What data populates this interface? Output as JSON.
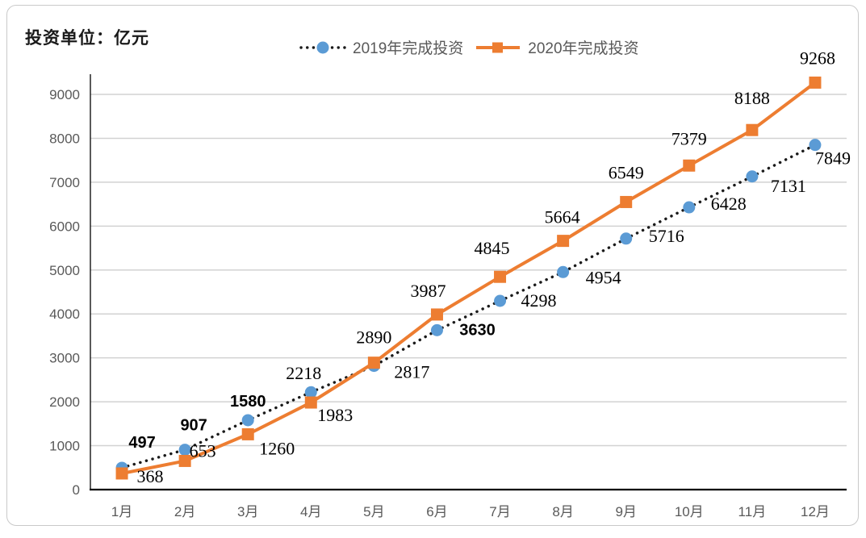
{
  "title": "投资单位：亿元",
  "legend": {
    "position": "top-center",
    "items": [
      {
        "label": "2019年完成投资",
        "marker": "dotted-line-circle",
        "text_color": "#595959"
      },
      {
        "label": "2020年完成投资",
        "marker": "solid-line-square",
        "text_color": "#595959"
      }
    ]
  },
  "chart_data": {
    "type": "line",
    "title": "投资单位：亿元",
    "unit": "亿元",
    "categories": [
      "1月",
      "2月",
      "3月",
      "4月",
      "5月",
      "6月",
      "7月",
      "8月",
      "9月",
      "10月",
      "11月",
      "12月"
    ],
    "series": [
      {
        "name": "2019年完成投资",
        "marker": "circle",
        "marker_color": "#5B9BD5",
        "line_color": "#1a1a1a",
        "line_style": "dotted",
        "values": [
          497,
          907,
          1580,
          2218,
          2817,
          3630,
          4298,
          4954,
          5716,
          6428,
          7131,
          7849
        ],
        "label_offsets": [
          [
            25,
            -32
          ],
          [
            11,
            -31
          ],
          [
            0,
            -24
          ],
          [
            -9,
            -23
          ],
          [
            47,
            8
          ],
          [
            50,
            -1
          ],
          [
            48,
            0
          ],
          [
            50,
            7
          ],
          [
            50,
            -3
          ],
          [
            49,
            -4
          ],
          [
            45,
            12
          ],
          [
            22,
            17
          ]
        ],
        "label_fonts": [
          "sans",
          "sans",
          "sans",
          "serif",
          "serif",
          "sans",
          "serif",
          "serif",
          "serif",
          "serif",
          "serif",
          "serif"
        ]
      },
      {
        "name": "2020年完成投资",
        "marker": "square",
        "marker_color": "#ED7D31",
        "line_color": "#ED7D31",
        "line_style": "solid",
        "values": [
          368,
          653,
          1260,
          1983,
          2890,
          3987,
          4845,
          5664,
          6549,
          7379,
          8188,
          9268
        ],
        "label_offsets": [
          [
            35,
            4
          ],
          [
            22,
            -12
          ],
          [
            36,
            18
          ],
          [
            30,
            16
          ],
          [
            0,
            -31
          ],
          [
            -11,
            -29
          ],
          [
            -10,
            -35
          ],
          [
            -1,
            -29
          ],
          [
            0,
            -36
          ],
          [
            0,
            -33
          ],
          [
            0,
            -39
          ],
          [
            3,
            -30
          ]
        ],
        "label_fonts": [
          "serif",
          "serif",
          "serif",
          "serif",
          "serif",
          "serif",
          "serif",
          "serif",
          "serif",
          "serif",
          "serif",
          "serif"
        ]
      }
    ],
    "ylim": [
      0,
      9000
    ],
    "ytick_step": 1000,
    "ytick_labels": [
      "0",
      "1000",
      "2000",
      "3000",
      "4000",
      "5000",
      "6000",
      "7000",
      "8000",
      "9000"
    ],
    "grid": "horizontal",
    "gridline_color": "#d2d2d2",
    "axis_color": "#000000",
    "tick_label_color": "#595959",
    "data_label_color": "#000000",
    "legend_position": "top-center"
  }
}
